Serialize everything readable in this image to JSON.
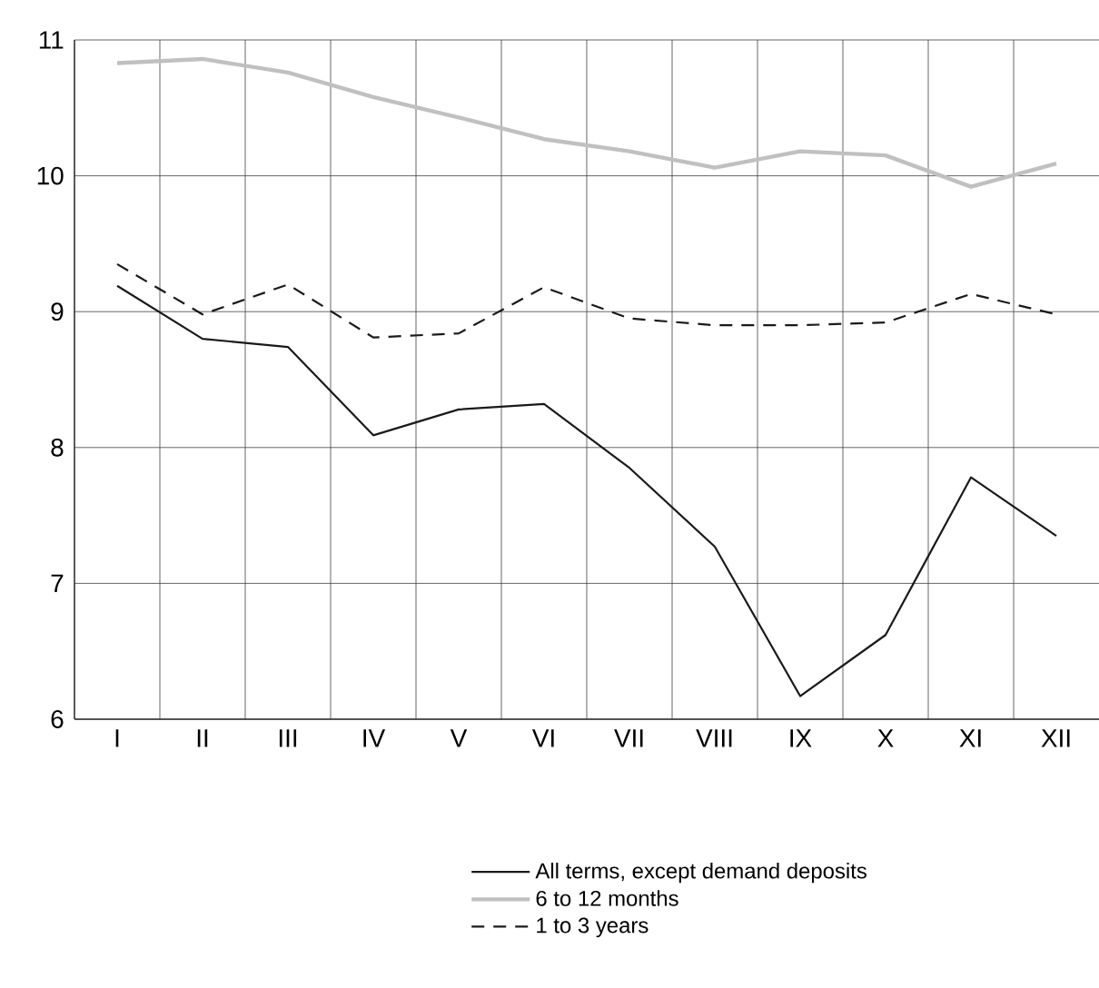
{
  "chart_data": {
    "type": "line",
    "categories": [
      "I",
      "II",
      "III",
      "IV",
      "V",
      "VI",
      "VII",
      "VIII",
      "IX",
      "X",
      "XI",
      "XII"
    ],
    "ylim": [
      6,
      11
    ],
    "yticks": [
      6,
      7,
      8,
      9,
      10,
      11
    ],
    "grid": true,
    "legend": "bottom",
    "marker": "none",
    "series": [
      {
        "name": "All terms, except demand deposits",
        "color": "#1a1a1a",
        "line_style": "solid",
        "values": [
          9.19,
          8.8,
          8.74,
          8.09,
          8.28,
          8.32,
          7.85,
          7.27,
          6.17,
          6.62,
          7.78,
          7.35
        ]
      },
      {
        "name": "6 to 12 months",
        "color": "#c0c0c0",
        "line_style": "solid",
        "values": [
          10.83,
          10.86,
          10.76,
          10.58,
          10.43,
          10.27,
          10.18,
          10.06,
          10.18,
          10.15,
          9.92,
          10.09
        ]
      },
      {
        "name": "1 to 3 years",
        "color": "#1a1a1a",
        "line_style": "dashed",
        "values": [
          9.35,
          8.98,
          9.2,
          8.81,
          8.84,
          9.18,
          8.95,
          8.9,
          8.9,
          8.92,
          9.13,
          8.98
        ]
      }
    ]
  }
}
